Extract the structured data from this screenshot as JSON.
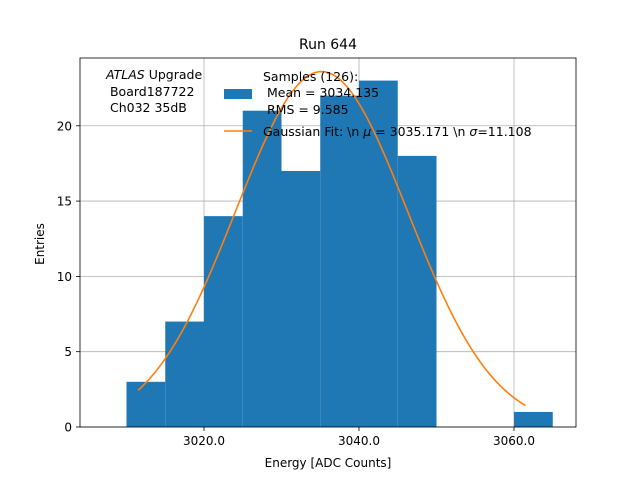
{
  "chart_data": {
    "type": "bar",
    "title": "Run 644",
    "xlabel": "Energy [ADC Counts]",
    "ylabel": "Entries",
    "xlim": [
      3004,
      3068
    ],
    "ylim": [
      0,
      24.5
    ],
    "grid": true,
    "x_ticks": [
      3020.0,
      3040.0,
      3060.0
    ],
    "x_tick_labels": [
      "3020.0",
      "3040.0",
      "3060.0"
    ],
    "y_ticks": [
      0,
      5,
      10,
      15,
      20
    ],
    "y_tick_labels": [
      "0",
      "5",
      "10",
      "15",
      "20"
    ],
    "histogram": {
      "name": "Samples",
      "bin_edges": [
        3010,
        3015,
        3020,
        3025,
        3030,
        3035,
        3040,
        3045,
        3050,
        3055,
        3060,
        3065
      ],
      "counts": [
        3,
        7,
        14,
        21,
        17,
        22,
        23,
        18,
        0,
        0,
        1
      ],
      "color": "#1f77b4"
    },
    "fit": {
      "name": "Gaussian Fit",
      "type": "gaussian",
      "mean": 3035.171,
      "sigma": 11.108,
      "amplitude": 23.6,
      "x_range": [
        3011.5,
        3061.5
      ],
      "color": "#ff7f0e"
    },
    "legend": {
      "placement": "top-center",
      "entries": [
        {
          "series": "histogram",
          "label_lines": [
            "Samples (126):",
            " Mean = 3034.135",
            " RMS = 9.585"
          ]
        },
        {
          "series": "fit",
          "label_lines": [
            "Gaussian Fit: \\n $\\mu$ = 3035.171 \\n $\\sigma$=11.108"
          ]
        }
      ]
    },
    "annotation": {
      "atlas_word": "ATLAS",
      "atlas_suffix": " Upgrade",
      "lines": [
        " Board187722",
        " Ch032 35dB"
      ]
    }
  }
}
